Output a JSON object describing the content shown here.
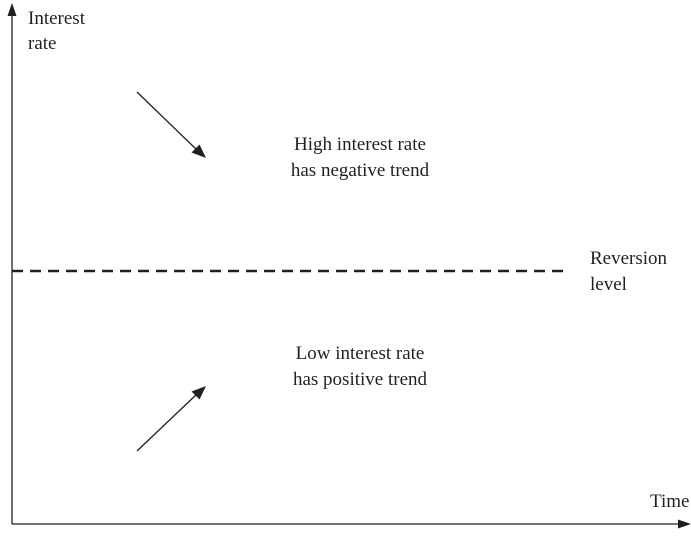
{
  "y_axis": {
    "label_line1": "Interest",
    "label_line2": "rate"
  },
  "x_axis": {
    "label": "Time"
  },
  "reversion": {
    "label_line1": "Reversion",
    "label_line2": "level"
  },
  "upper_region": {
    "line1": "High interest rate",
    "line2": "has negative trend"
  },
  "lower_region": {
    "line1": "Low interest rate",
    "line2": "has positive trend"
  },
  "colors": {
    "ink": "#231f20",
    "background": "#ffffff"
  }
}
